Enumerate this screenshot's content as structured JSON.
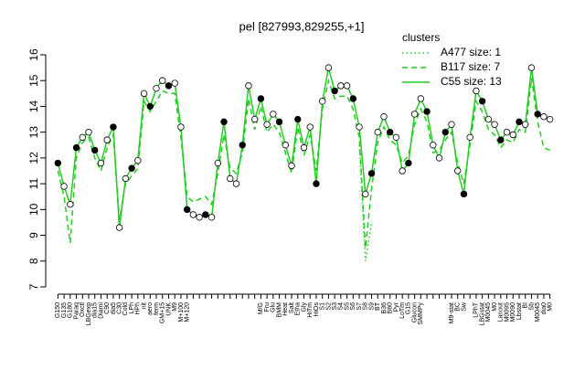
{
  "chart_data": {
    "type": "line",
    "title": "pel [827993,829255,+1]",
    "categories": [
      "G150",
      "G135",
      "G180",
      "Paraq",
      "Oxctl",
      "LBGexp",
      "dia15",
      "Diami",
      "C90",
      "dia5",
      "C30",
      "Cold",
      "LPh",
      "HPh",
      "nit",
      "aero",
      "ferm",
      "GM+15",
      "UNK",
      "M9",
      "M+100",
      "M+120",
      null,
      null,
      null,
      null,
      null,
      null,
      null,
      null,
      null,
      null,
      null,
      "M/G",
      "Fru",
      "Glu",
      "BMM",
      "Heat",
      "Salt",
      "Etha",
      "Gly",
      "HiTm",
      "HiOs",
      "S1",
      "S2",
      "S3",
      "S4",
      "S5",
      "S6",
      "S7",
      "S8",
      "S9",
      "BT",
      "B36",
      "B60",
      "Pyr",
      "LoTm",
      "G15",
      "Glucon",
      "SMMPy",
      null,
      null,
      null,
      null,
      "M9-stat",
      "BC",
      "Sw",
      null,
      "LPhT",
      "LBGstat",
      "M0045",
      "M0",
      "Lanout",
      "M0095",
      "M0090",
      "Lbstat",
      "BI",
      "Sb",
      "M0045",
      "dia0",
      "M0"
    ],
    "series": [
      {
        "name": "A477 size: 1",
        "color": "#22cc22",
        "dash": "dotted",
        "values": [
          null,
          null,
          null,
          null,
          null,
          null,
          null,
          null,
          null,
          null,
          null,
          null,
          null,
          null,
          null,
          null,
          null,
          null,
          null,
          null,
          null,
          null,
          null,
          null,
          null,
          null,
          null,
          null,
          null,
          null,
          null,
          null,
          null,
          null,
          null,
          null,
          null,
          null,
          null,
          null,
          null,
          null,
          null,
          null,
          null,
          null,
          null,
          null,
          null,
          12.5,
          8.0,
          9.5,
          null,
          null,
          null,
          null,
          null,
          null,
          null,
          null,
          null,
          null,
          null,
          null,
          null,
          null,
          null,
          null,
          null,
          null,
          null,
          null,
          null,
          null,
          null,
          null,
          null,
          null,
          null,
          null,
          null
        ]
      },
      {
        "name": "B117 size: 7",
        "color": "#22cc22",
        "dash": "dashed",
        "values": [
          11.5,
          10.5,
          8.7,
          12.0,
          12.6,
          12.8,
          12.0,
          11.5,
          12.4,
          12.9,
          9.6,
          11.0,
          11.3,
          11.6,
          14.2,
          13.8,
          14.2,
          14.6,
          14.5,
          14.5,
          12.8,
          10.5,
          10.3,
          10.4,
          10.5,
          10.2,
          11.4,
          12.9,
          11.6,
          11.4,
          12.2,
          14.3,
          13.1,
          14.0,
          13.0,
          13.3,
          13.0,
          12.2,
          11.4,
          13.2,
          12.1,
          12.9,
          11.5,
          13.9,
          15.0,
          14.3,
          14.4,
          14.4,
          13.9,
          12.8,
          8.5,
          10.8,
          12.6,
          13.2,
          12.7,
          12.5,
          11.8,
          12.1,
          13.3,
          13.9,
          13.4,
          12.2,
          12.3,
          12.7,
          13.0,
          11.8,
          11.0,
          12.5,
          14.2,
          13.8,
          13.1,
          12.9,
          12.4,
          12.7,
          12.6,
          13.1,
          13.0,
          15.1,
          13.4,
          12.4,
          12.3
        ]
      },
      {
        "name": "C55 size: 13",
        "color": "#22cc22",
        "dash": "solid",
        "markers": true,
        "values": [
          11.8,
          10.9,
          10.2,
          12.4,
          12.8,
          13.0,
          12.3,
          11.8,
          12.7,
          13.2,
          9.3,
          11.2,
          11.6,
          11.9,
          14.5,
          14.0,
          14.7,
          15.0,
          14.8,
          14.9,
          13.2,
          10.0,
          9.8,
          9.7,
          9.8,
          9.7,
          11.8,
          13.4,
          11.2,
          11.0,
          12.5,
          14.8,
          13.5,
          14.3,
          13.3,
          13.7,
          13.4,
          12.5,
          11.7,
          13.5,
          12.4,
          13.2,
          11.0,
          14.2,
          15.5,
          14.6,
          14.8,
          14.8,
          14.3,
          13.2,
          10.6,
          11.4,
          13.0,
          13.6,
          13.0,
          12.8,
          11.5,
          11.8,
          13.7,
          14.3,
          13.8,
          12.5,
          12.0,
          13.0,
          13.3,
          11.5,
          10.6,
          12.8,
          14.6,
          14.2,
          13.5,
          13.3,
          12.7,
          13.0,
          12.9,
          13.4,
          13.3,
          15.5,
          13.7,
          13.6,
          13.5
        ]
      }
    ],
    "ylim": [
      7,
      16
    ],
    "yticks": [
      7,
      8,
      9,
      10,
      11,
      12,
      13,
      14,
      15,
      16
    ],
    "legend": {
      "title": "clusters",
      "position": "top-right"
    }
  }
}
